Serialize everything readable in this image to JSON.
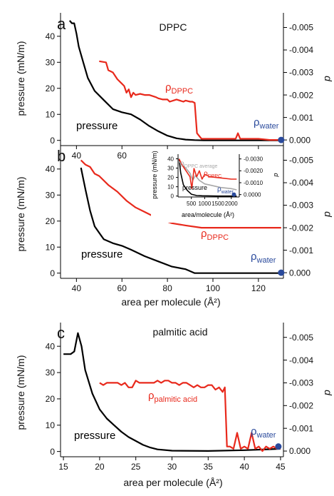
{
  "chart_data": [
    {
      "type": "line",
      "panel": "a",
      "title": "DPPC",
      "ylabel_left": "pressure (mN/m)",
      "ylabel_right": "d",
      "xlim": [
        33,
        131
      ],
      "ylim_left": [
        -2,
        49
      ],
      "ylim_right": [
        0.00025,
        -0.00565
      ],
      "xticks": [
        40,
        60,
        80,
        100,
        120
      ],
      "yticks_left": [
        0,
        10,
        20,
        30,
        40
      ],
      "yticks_right": [
        0.0,
        -0.001,
        -0.002,
        -0.003,
        -0.004,
        -0.005
      ],
      "ytick_labels_right": [
        "0.000",
        "-0.001",
        "-0.002",
        "-0.003",
        "-0.004",
        "-0.005"
      ],
      "series": [
        {
          "name": "pressure",
          "axis": "left",
          "color": "#000000",
          "x": [
            37,
            38,
            39,
            40,
            41,
            43,
            45,
            48,
            52,
            56,
            60,
            64,
            68,
            72,
            76,
            80,
            84,
            88,
            92,
            96,
            100,
            110,
            120,
            130
          ],
          "y": [
            46,
            45,
            45,
            41,
            36,
            30,
            24,
            19,
            15.5,
            12,
            10.8,
            10,
            8,
            5.5,
            3.5,
            1.8,
            0.8,
            0.3,
            0.1,
            0,
            0,
            0,
            0,
            0
          ]
        },
        {
          "name": "ρDPPC",
          "axis": "right",
          "color": "#e8291c",
          "x": [
            50,
            53,
            54,
            56,
            58,
            60,
            61,
            62,
            63,
            64,
            65,
            66,
            68,
            70,
            72,
            75,
            76,
            78,
            80,
            81,
            84,
            87,
            88,
            90,
            91,
            92,
            93,
            95,
            100,
            105,
            110,
            111,
            112,
            113,
            120,
            125,
            130
          ],
          "y": [
            -0.0035,
            -0.00345,
            -0.0031,
            -0.003,
            -0.0027,
            -0.0025,
            -0.0024,
            -0.0021,
            -0.00225,
            -0.0019,
            -0.0021,
            -0.002,
            -0.00205,
            -0.002,
            -0.002,
            -0.0019,
            -0.00185,
            -0.0018,
            -0.0018,
            -0.0017,
            -0.0018,
            -0.0017,
            -0.00175,
            -0.0017,
            -0.0017,
            -0.00165,
            -0.0003,
            -5e-05,
            -5e-05,
            -5e-05,
            -5e-05,
            -0.0003,
            -5e-05,
            -5e-05,
            -5e-05,
            0.0,
            0.0
          ]
        },
        {
          "name": "ρwater",
          "axis": "right",
          "color": "#2a4a9c",
          "marker": "circle",
          "x": [
            130
          ],
          "y": [
            0.0
          ]
        }
      ],
      "annotations": [
        {
          "text": "pressure",
          "color": "#000000"
        },
        {
          "text": "ρ",
          "sub": "DPPC",
          "color": "#e8291c"
        },
        {
          "text": "ρ",
          "sub": "water",
          "color": "#2a4a9c"
        }
      ]
    },
    {
      "type": "line",
      "panel": "b",
      "xlabel": "area per molecule (Å²)",
      "ylabel_left": "pressure (mN/m)",
      "ylabel_right": "d",
      "xlim": [
        33,
        131
      ],
      "ylim_left": [
        -2,
        49
      ],
      "ylim_right": [
        0.00025,
        -0.00565
      ],
      "xticks": [
        40,
        60,
        80,
        100,
        120
      ],
      "yticks_left": [
        0,
        10,
        20,
        30,
        40
      ],
      "yticks_right": [
        0.0,
        -0.001,
        -0.002,
        -0.003,
        -0.004,
        -0.005
      ],
      "ytick_labels_right": [
        "0.000",
        "-0.001",
        "-0.002",
        "-0.003",
        "-0.004",
        "-0.005"
      ],
      "series": [
        {
          "name": "pressure",
          "axis": "left",
          "color": "#000000",
          "x": [
            42,
            44,
            46,
            48,
            50,
            52,
            56,
            60,
            64,
            70,
            76,
            82,
            88,
            92,
            100,
            110,
            120,
            130
          ],
          "y": [
            40.5,
            32,
            24,
            18,
            15.5,
            13,
            11.5,
            10.5,
            9,
            6.5,
            4.5,
            2.5,
            1.5,
            0,
            0,
            0,
            0,
            0
          ]
        },
        {
          "name": "ρDPPC",
          "axis": "right",
          "color": "#e8291c",
          "x": [
            42,
            44,
            46,
            48,
            50,
            54,
            58,
            62,
            66,
            70,
            76,
            82,
            88,
            95,
            100,
            110,
            120,
            130
          ],
          "y": [
            -0.005,
            -0.0048,
            -0.0047,
            -0.0044,
            -0.0043,
            -0.0039,
            -0.0036,
            -0.0032,
            -0.0029,
            -0.0027,
            -0.0024,
            -0.0022,
            -0.0021,
            -0.002,
            -0.002,
            -0.002,
            -0.002,
            -0.002
          ]
        },
        {
          "name": "ρwater",
          "axis": "right",
          "color": "#2a4a9c",
          "marker": "circle",
          "x": [
            130
          ],
          "y": [
            0.0
          ]
        }
      ],
      "annotations": [
        {
          "text": "pressure",
          "color": "#000000"
        },
        {
          "text": "ρ",
          "sub": "DPPC",
          "color": "#e8291c"
        },
        {
          "text": "ρ",
          "sub": "water",
          "color": "#2a4a9c"
        }
      ],
      "inset": {
        "xlabel": "area/molecule (Å²)",
        "ylabel_left": "pressure (mN/m)",
        "ylabel_right": "d",
        "xlim": [
          0,
          2300
        ],
        "ylim_left": [
          -1,
          45
        ],
        "ylim_right": [
          0.0002,
          -0.0034
        ],
        "xticks": [
          500,
          1000,
          1500,
          2000
        ],
        "yticks_left": [
          0,
          10,
          20,
          30,
          40
        ],
        "yticks_right": [
          0.0,
          -0.001,
          -0.002,
          -0.003
        ],
        "ytick_labels_right": [
          "0.0000",
          "-0.0010",
          "-0.0020",
          "-0.0030"
        ],
        "series": [
          {
            "name": "pressure",
            "axis": "left",
            "color": "#000000",
            "x": [
              40,
              100,
              200,
              350,
              500,
              700,
              900,
              1100,
              1500,
              2000,
              2200
            ],
            "y": [
              40,
              25,
              12,
              6,
              2,
              0.5,
              0.3,
              0.2,
              0,
              0,
              0
            ]
          },
          {
            "name": "ρDPPC average",
            "axis": "right",
            "color": "#a8a8a8",
            "x": [
              40,
              150,
              300,
              450,
              550,
              650,
              800,
              1000,
              1200,
              1600,
              2000,
              2200
            ],
            "y": [
              -0.0028,
              -0.0025,
              -0.0022,
              -0.0018,
              -0.0012,
              -0.0016,
              -0.0012,
              -0.0009,
              -0.0008,
              -0.0006,
              -0.0005,
              -0.0004
            ]
          },
          {
            "name": "ρDPPC",
            "axis": "right",
            "color": "#e8291c",
            "x": [
              40,
              150,
              300,
              450,
              520,
              600,
              700,
              800,
              900,
              1000,
              1200,
              1600,
              2000,
              2200
            ],
            "y": [
              -0.003,
              -0.0025,
              -0.002,
              -0.0015,
              -0.0005,
              -0.0022,
              -0.0015,
              -0.002,
              -0.0013,
              -0.0017,
              -0.0015,
              -0.0014,
              -0.0013,
              -0.0013
            ]
          },
          {
            "name": "ρwater",
            "axis": "right",
            "color": "#2a4a9c",
            "marker": "circle",
            "x": [
              2100
            ],
            "y": [
              0.0
            ]
          }
        ],
        "annotations": [
          {
            "text": "ρ",
            "sub": "DPPC average",
            "color": "#a8a8a8"
          },
          {
            "text": "ρ",
            "sub": "DPPC",
            "color": "#e8291c"
          },
          {
            "text": "pressure",
            "color": "#000000"
          },
          {
            "text": "ρ",
            "sub": "water",
            "color": "#2a4a9c"
          }
        ]
      }
    },
    {
      "type": "line",
      "panel": "c",
      "title": "palmitic acid",
      "xlabel": "area per molecule (Å²)",
      "ylabel_left": "pressure (mN/m)",
      "ylabel_right": "d",
      "xlim": [
        14.6,
        45.4
      ],
      "ylim_left": [
        -2,
        49
      ],
      "ylim_right": [
        0.00025,
        -0.00565
      ],
      "xticks": [
        15,
        20,
        25,
        30,
        35,
        40,
        45
      ],
      "yticks_left": [
        0,
        10,
        20,
        30,
        40
      ],
      "yticks_right": [
        0.0,
        -0.001,
        -0.002,
        -0.003,
        -0.004,
        -0.005
      ],
      "ytick_labels_right": [
        "0.000",
        "-0.001",
        "-0.002",
        "-0.003",
        "-0.004",
        "-0.005"
      ],
      "series": [
        {
          "name": "pressure",
          "axis": "left",
          "color": "#000000",
          "x": [
            15,
            16,
            16.5,
            17,
            17.5,
            18,
            19,
            20,
            21,
            22,
            23,
            24,
            25,
            26,
            27,
            28,
            30,
            35,
            40,
            45
          ],
          "y": [
            37,
            37,
            38,
            45,
            40,
            31,
            22,
            16,
            12.5,
            10,
            7.5,
            5.5,
            4,
            2.5,
            1.5,
            0.8,
            0.3,
            0.2,
            0.5,
            1
          ]
        },
        {
          "name": "ρpalmitic acid",
          "axis": "right",
          "color": "#e8291c",
          "x": [
            20,
            20.5,
            21,
            21.5,
            22,
            22.5,
            23,
            23.5,
            24,
            24.5,
            25,
            25.5,
            26,
            26.5,
            27,
            27.5,
            28,
            28.5,
            29,
            29.5,
            30,
            30.5,
            31,
            31.5,
            32,
            32.5,
            33,
            33.5,
            34,
            34.5,
            35,
            35.5,
            36,
            36.5,
            37,
            37.3,
            37.6,
            38,
            38.5,
            39,
            39.5,
            40,
            40.5,
            41,
            41.5,
            42,
            42.5,
            43,
            43.5,
            44,
            44.5,
            45
          ],
          "y": [
            -0.003,
            -0.0029,
            -0.003,
            -0.003,
            -0.003,
            -0.003,
            -0.0029,
            -0.003,
            -0.0028,
            -0.0028,
            -0.0031,
            -0.003,
            -0.003,
            -0.003,
            -0.003,
            -0.003,
            -0.0031,
            -0.003,
            -0.0031,
            -0.0031,
            -0.003,
            -0.003,
            -0.0029,
            -0.003,
            -0.003,
            -0.0029,
            -0.0028,
            -0.0029,
            -0.0028,
            -0.0028,
            -0.0029,
            -0.0029,
            -0.0027,
            -0.0028,
            -0.0026,
            -0.0028,
            -0.0002,
            -0.0002,
            -0.0001,
            -0.0008,
            -0.0001,
            -0.0002,
            -0.0001,
            -0.0008,
            -0.0001,
            -0.0002,
            0.0,
            -0.0002,
            -0.0001,
            -0.0002,
            -0.0001,
            -0.0001
          ]
        },
        {
          "name": "ρwater",
          "axis": "right",
          "color": "#2a4a9c",
          "marker": "circle",
          "x": [
            44.7
          ],
          "y": [
            -0.0002
          ]
        }
      ],
      "annotations": [
        {
          "text": "pressure",
          "color": "#000000"
        },
        {
          "text": "ρ",
          "sub": "palmitic acid",
          "color": "#e8291c"
        },
        {
          "text": "ρ",
          "sub": "water",
          "color": "#2a4a9c"
        }
      ]
    }
  ]
}
